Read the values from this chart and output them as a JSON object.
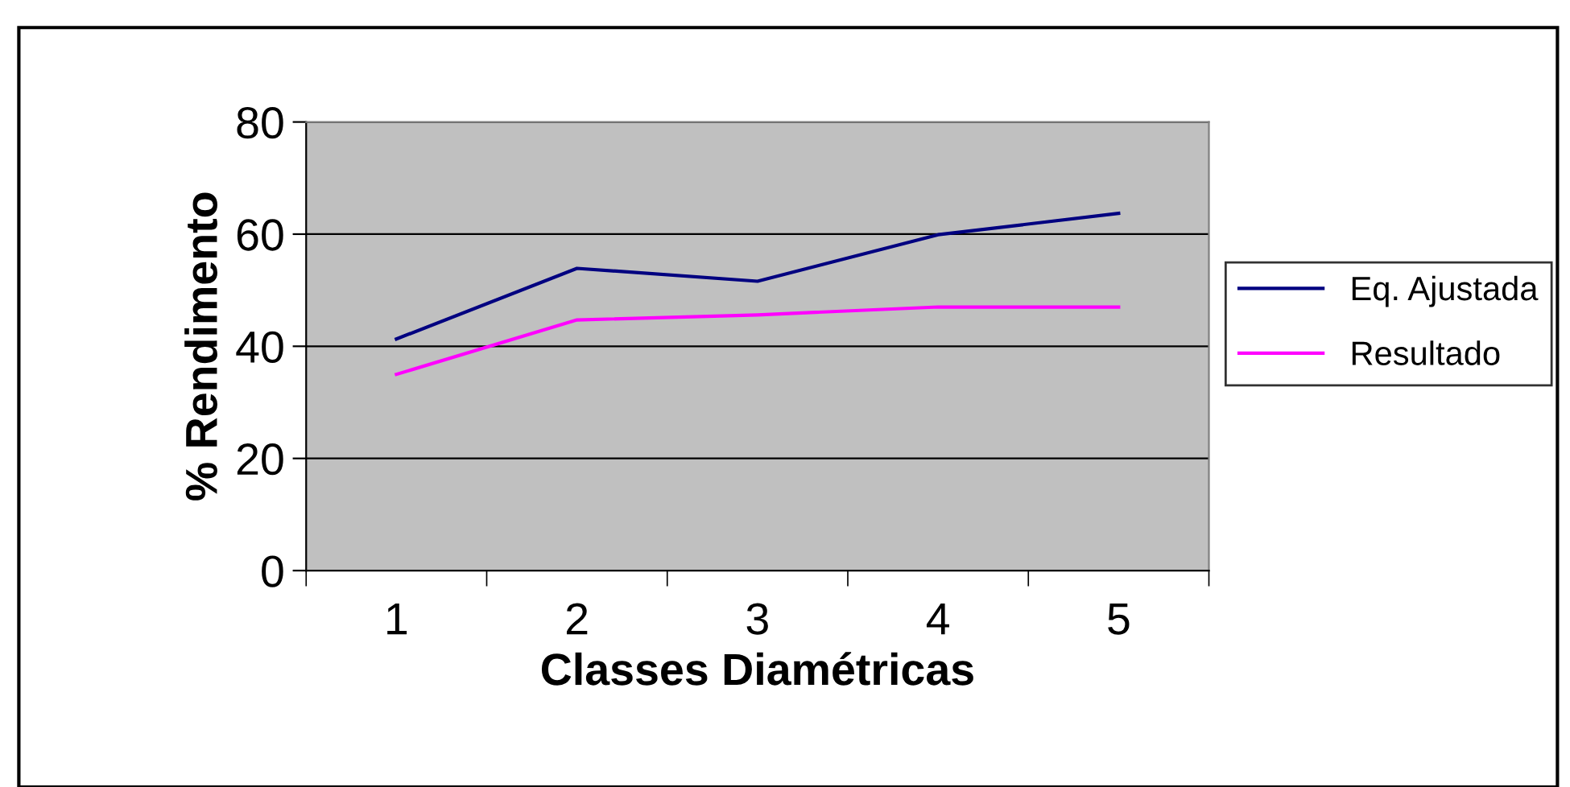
{
  "chart_data": {
    "type": "line",
    "xlabel": "Classes Diamétricas",
    "ylabel": "% Rendimento",
    "categories": [
      "1",
      "2",
      "3",
      "4",
      "5"
    ],
    "series": [
      {
        "name": "Eq. Ajustada",
        "color": "#000080",
        "values": [
          41.3,
          53.9,
          51.6,
          59.9,
          63.7
        ]
      },
      {
        "name": "Resultado",
        "color": "#ff00ff",
        "values": [
          35.0,
          44.7,
          45.6,
          47.0,
          47.0
        ]
      }
    ],
    "ylim": [
      0,
      80
    ],
    "yticks": [
      0,
      20,
      40,
      60,
      80
    ],
    "grid": "y",
    "legend": "right",
    "marker": "none",
    "line_style": "solid"
  }
}
